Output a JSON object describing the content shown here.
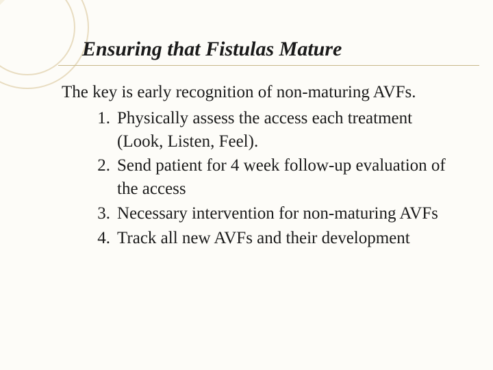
{
  "slide": {
    "title": "Ensuring that Fistulas Mature",
    "intro": "The key is early recognition of non-maturing AVFs.",
    "items": [
      {
        "num": "1.",
        "text": "Physically assess the access each treatment (Look, Listen, Feel)."
      },
      {
        "num": "2.",
        "text": "Send patient for 4 week follow-up evaluation of the access"
      },
      {
        "num": "3.",
        "text": "Necessary intervention for non-maturing AVFs"
      },
      {
        "num": "4.",
        "text": "Track all new AVFs and their development"
      }
    ],
    "colors": {
      "background": "#fdfcf8",
      "decoration_ring": "#e8dcc0",
      "decoration_fill": "#f0e8d0",
      "underline": "#c8b88a",
      "text": "#1a1a1a"
    },
    "typography": {
      "title_fontsize": 30,
      "title_style": "italic bold",
      "body_fontsize": 25,
      "font_family": "serif"
    }
  }
}
